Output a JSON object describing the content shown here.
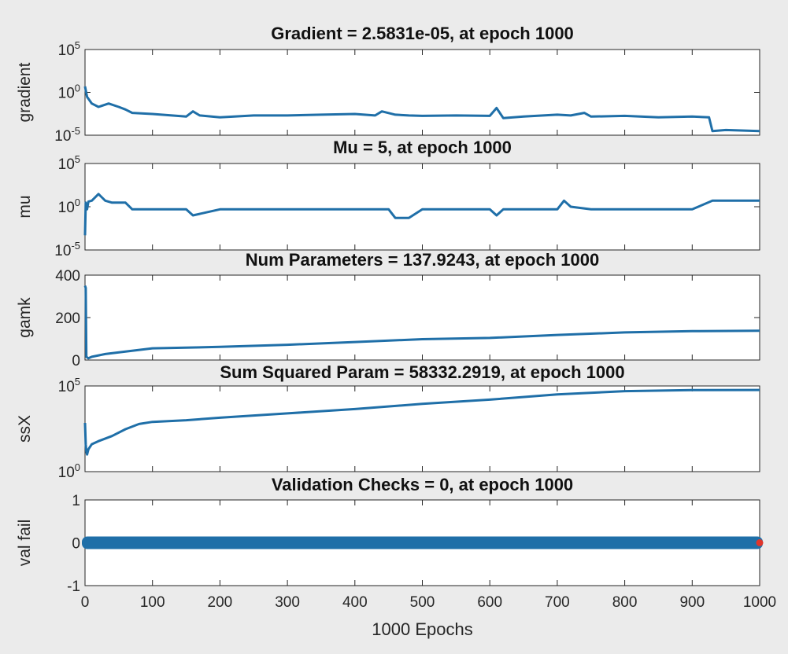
{
  "chart_data": [
    {
      "type": "line",
      "title": "Gradient = 2.5831e-05, at epoch 1000",
      "ylabel": "gradient",
      "yscale": "log",
      "ylim": [
        1e-05,
        100000
      ],
      "yticks": [
        {
          "base": "10",
          "exp": "5"
        },
        {
          "base": "10",
          "exp": "0"
        },
        {
          "base": "10",
          "exp": "-5"
        }
      ],
      "series": [
        {
          "name": "gradient",
          "color": "#1f6fa8",
          "x": [
            0,
            3,
            10,
            20,
            35,
            50,
            60,
            70,
            100,
            150,
            160,
            170,
            200,
            250,
            300,
            350,
            400,
            430,
            440,
            460,
            480,
            500,
            550,
            600,
            610,
            620,
            650,
            700,
            720,
            740,
            750,
            800,
            850,
            900,
            925,
            930,
            950,
            1000
          ],
          "y": [
            5,
            0.3,
            0.05,
            0.02,
            0.05,
            0.02,
            0.01,
            0.004,
            0.003,
            0.0015,
            0.006,
            0.002,
            0.0012,
            0.002,
            0.002,
            0.0025,
            0.003,
            0.002,
            0.006,
            0.0025,
            0.002,
            0.0018,
            0.002,
            0.0018,
            0.015,
            0.001,
            0.0015,
            0.0025,
            0.002,
            0.004,
            0.0015,
            0.0018,
            0.0012,
            0.0015,
            0.0012,
            3e-05,
            4e-05,
            3e-05
          ]
        }
      ]
    },
    {
      "type": "line",
      "title": "Mu = 5, at epoch 1000",
      "ylabel": "mu",
      "yscale": "log",
      "ylim": [
        1e-05,
        100000
      ],
      "yticks": [
        {
          "base": "10",
          "exp": "5"
        },
        {
          "base": "10",
          "exp": "0"
        },
        {
          "base": "10",
          "exp": "-5"
        }
      ],
      "series": [
        {
          "name": "mu",
          "color": "#1f6fa8",
          "x": [
            0,
            1,
            3,
            5,
            10,
            20,
            30,
            40,
            60,
            70,
            80,
            100,
            150,
            160,
            200,
            300,
            360,
            400,
            450,
            460,
            480,
            500,
            550,
            600,
            610,
            620,
            650,
            700,
            710,
            720,
            750,
            800,
            900,
            930,
            950,
            1000
          ],
          "y": [
            0.0005,
            3,
            0.5,
            4,
            5,
            30,
            5,
            3,
            3,
            0.5,
            0.5,
            0.5,
            0.5,
            0.1,
            0.5,
            0.5,
            0.5,
            0.5,
            0.5,
            0.05,
            0.05,
            0.5,
            0.5,
            0.5,
            0.1,
            0.5,
            0.5,
            0.5,
            5,
            1,
            0.5,
            0.5,
            0.5,
            5,
            5,
            5
          ]
        }
      ]
    },
    {
      "type": "line",
      "title": "Num Parameters = 137.9243, at epoch 1000",
      "ylabel": "gamk",
      "yscale": "linear",
      "ylim": [
        0,
        400
      ],
      "yticks": [
        "400",
        "200",
        "0"
      ],
      "series": [
        {
          "name": "gamk",
          "color": "#1f6fa8",
          "x": [
            0,
            1,
            2,
            5,
            10,
            30,
            60,
            100,
            150,
            200,
            300,
            400,
            500,
            600,
            700,
            800,
            900,
            1000
          ],
          "y": [
            350,
            340,
            15,
            8,
            15,
            28,
            40,
            55,
            58,
            62,
            72,
            85,
            98,
            104,
            118,
            130,
            136,
            138
          ]
        }
      ]
    },
    {
      "type": "line",
      "title": "Sum Squared Param = 58332.2919, at epoch 1000",
      "ylabel": "ssX",
      "yscale": "log",
      "ylim": [
        1,
        100000
      ],
      "yticks": [
        {
          "base": "10",
          "exp": "5"
        },
        {
          "base": "10",
          "exp": "0"
        }
      ],
      "series": [
        {
          "name": "ssX",
          "color": "#1f6fa8",
          "x": [
            0,
            1,
            2,
            3,
            5,
            10,
            20,
            40,
            60,
            80,
            100,
            150,
            200,
            300,
            400,
            500,
            600,
            700,
            800,
            900,
            1000
          ],
          "y": [
            700,
            40,
            15,
            10,
            20,
            40,
            60,
            120,
            300,
            600,
            800,
            1000,
            1400,
            2500,
            4500,
            9000,
            16000,
            32000,
            50000,
            57000,
            58332
          ]
        }
      ]
    },
    {
      "type": "scatter",
      "title": "Validation Checks = 0, at epoch 1000",
      "ylabel": "val fail",
      "yscale": "linear",
      "ylim": [
        -1,
        1
      ],
      "yticks": [
        "1",
        "0",
        "-1"
      ],
      "xlim": [
        0,
        1000
      ],
      "xticks": [
        "0",
        "100",
        "200",
        "300",
        "400",
        "500",
        "600",
        "700",
        "800",
        "900",
        "1000"
      ],
      "xlabel": "1000 Epochs",
      "series": [
        {
          "name": "val fail",
          "color": "#1f6fa8",
          "range": [
            0,
            1000
          ],
          "y": 0
        }
      ],
      "highlight": {
        "x": 1000,
        "y": 0,
        "color": "#e0352b"
      }
    }
  ]
}
